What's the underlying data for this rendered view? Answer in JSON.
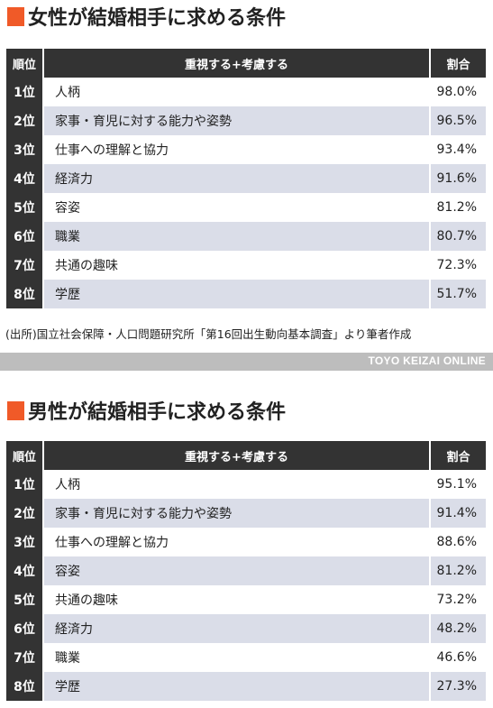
{
  "women": {
    "title": "女性が結婚相手に求める条件",
    "headers": {
      "rank": "順位",
      "item": "重視する+考慮する",
      "pct": "割合"
    },
    "rows": [
      {
        "rank": "1位",
        "item": "人柄",
        "pct": "98.0%"
      },
      {
        "rank": "2位",
        "item": "家事・育児に対する能力や姿勢",
        "pct": "96.5%"
      },
      {
        "rank": "3位",
        "item": "仕事への理解と協力",
        "pct": "93.4%"
      },
      {
        "rank": "4位",
        "item": "経済力",
        "pct": "91.6%"
      },
      {
        "rank": "5位",
        "item": "容姿",
        "pct": "81.2%"
      },
      {
        "rank": "6位",
        "item": "職業",
        "pct": "80.7%"
      },
      {
        "rank": "7位",
        "item": "共通の趣味",
        "pct": "72.3%"
      },
      {
        "rank": "8位",
        "item": "学歴",
        "pct": "51.7%"
      }
    ],
    "source": "(出所)国立社会保障・人口問題研究所「第16回出生動向基本調査」より筆者作成",
    "brand": "TOYO KEIZAI ONLINE"
  },
  "men": {
    "title": "男性が結婚相手に求める条件",
    "headers": {
      "rank": "順位",
      "item": "重視する+考慮する",
      "pct": "割合"
    },
    "rows": [
      {
        "rank": "1位",
        "item": "人柄",
        "pct": "95.1%"
      },
      {
        "rank": "2位",
        "item": "家事・育児に対する能力や姿勢",
        "pct": "91.4%"
      },
      {
        "rank": "3位",
        "item": "仕事への理解と協力",
        "pct": "88.6%"
      },
      {
        "rank": "4位",
        "item": "容姿",
        "pct": "81.2%"
      },
      {
        "rank": "5位",
        "item": "共通の趣味",
        "pct": "73.2%"
      },
      {
        "rank": "6位",
        "item": "経済力",
        "pct": "48.2%"
      },
      {
        "rank": "7位",
        "item": "職業",
        "pct": "46.6%"
      },
      {
        "rank": "8位",
        "item": "学歴",
        "pct": "27.3%"
      }
    ]
  },
  "colors": {
    "accent": "#f05a28",
    "header_bg": "#333333",
    "stripe": "#dadde8",
    "brandbar": "#bdbdbd"
  }
}
